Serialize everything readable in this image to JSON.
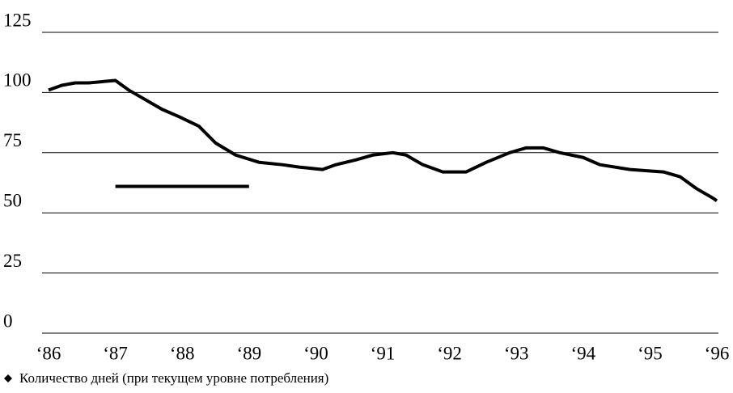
{
  "chart_data": {
    "type": "line",
    "xlim": [
      1986,
      1996
    ],
    "xticks": [
      {
        "value": 1986,
        "label": "‘86"
      },
      {
        "value": 1987,
        "label": "‘87"
      },
      {
        "value": 1988,
        "label": "‘88"
      },
      {
        "value": 1989,
        "label": "‘89"
      },
      {
        "value": 1990,
        "label": "‘90"
      },
      {
        "value": 1991,
        "label": "‘91"
      },
      {
        "value": 1992,
        "label": "‘92"
      },
      {
        "value": 1993,
        "label": "‘93"
      },
      {
        "value": 1994,
        "label": "‘94"
      },
      {
        "value": 1995,
        "label": "‘95"
      },
      {
        "value": 1996,
        "label": "‘96"
      }
    ],
    "ylim": [
      0,
      125
    ],
    "yticks": [
      0,
      25,
      50,
      75,
      100,
      125
    ],
    "grid": true,
    "x": [
      1986.0,
      1986.2,
      1986.4,
      1986.6,
      1987.0,
      1987.2,
      1987.45,
      1987.7,
      1987.95,
      1988.25,
      1988.5,
      1988.8,
      1989.15,
      1989.5,
      1989.75,
      1990.1,
      1990.3,
      1990.6,
      1990.85,
      1991.15,
      1991.35,
      1991.6,
      1991.9,
      1992.25,
      1992.55,
      1992.9,
      1993.15,
      1993.4,
      1993.65,
      1994.0,
      1994.25,
      1994.7,
      1995.2,
      1995.45,
      1995.7,
      1995.95,
      1996.0
    ],
    "series": [
      {
        "name": "Количество дней (при текущем уровне потребления)",
        "color": "#000000",
        "values": [
          101,
          103,
          104,
          104,
          105,
          101,
          97,
          93,
          90,
          86,
          79,
          74,
          71,
          70,
          69,
          68,
          70,
          72,
          74,
          75,
          74,
          70,
          67,
          67,
          71,
          75,
          77,
          77,
          75,
          73,
          70,
          68,
          67,
          65,
          60,
          56,
          55
        ]
      }
    ],
    "reference_segment": {
      "x": [
        1987,
        1989
      ],
      "value": 61,
      "color": "#000000"
    }
  }
}
